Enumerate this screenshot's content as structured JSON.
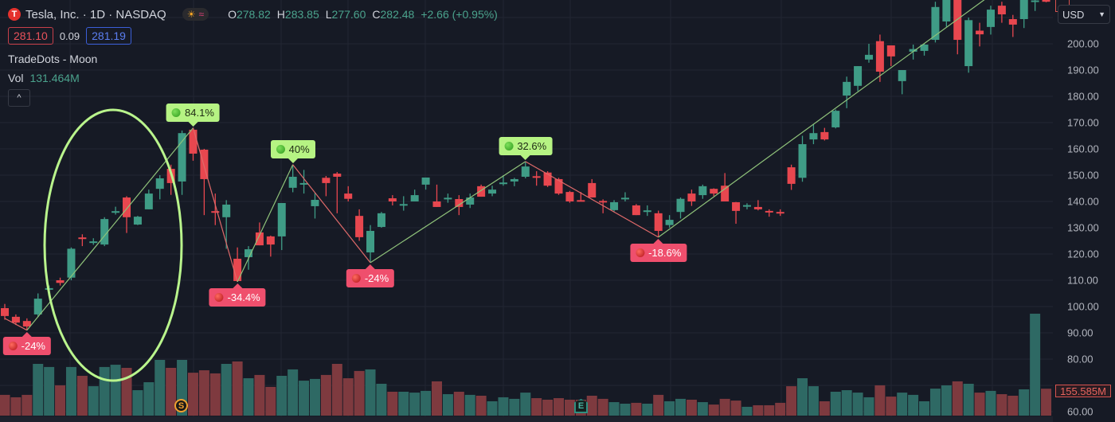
{
  "header": {
    "symbol_title": "Tesla, Inc. · 1D · NASDAQ",
    "logo_letter": "T",
    "ohlc": [
      {
        "key": "O",
        "value": "278.82"
      },
      {
        "key": "H",
        "value": "283.85"
      },
      {
        "key": "L",
        "value": "277.60"
      },
      {
        "key": "C",
        "value": "282.48"
      }
    ],
    "change": "+2.66 (+0.95%)",
    "bid": "281.10",
    "spread": "0.09",
    "ask": "281.19",
    "indicator": "TradeDots - Moon",
    "vol_label": "Vol",
    "vol_value": "131.464M",
    "collapse_icon": "^"
  },
  "currency": {
    "label": "USD",
    "icon": "chevron-down-icon"
  },
  "colors": {
    "up": "#3f9c86",
    "down": "#e8474f",
    "vol_up": "#2e6964",
    "vol_down": "#7e3a3f",
    "signal_up": "#b6f383",
    "signal_down": "#ef4f6d",
    "ellipse": "#b9f48c",
    "background": "#161a25"
  },
  "events": {
    "split": "S",
    "earnings": "E"
  },
  "chart_data": {
    "type": "candlestick",
    "yaxis_ticks": [
      "200.00",
      "190.00",
      "180.00",
      "170.00",
      "160.00",
      "150.00",
      "140.00",
      "130.00",
      "120.00",
      "110.00",
      "100.00",
      "90.00",
      "80.00",
      "60.00"
    ],
    "ylim": [
      60,
      216
    ],
    "grid": true,
    "last_volume_label": "155.585M",
    "candles": [
      [
        99.4,
        101,
        95,
        96.4
      ],
      [
        96.1,
        97,
        93,
        93.9
      ],
      [
        94.5,
        95.5,
        91,
        92.4
      ],
      [
        97,
        105,
        96,
        103
      ],
      [
        106.5,
        108,
        106,
        107
      ],
      [
        110,
        111,
        108,
        109
      ],
      [
        111,
        122.5,
        110,
        122
      ],
      [
        126.3,
        127.5,
        123,
        125.8
      ],
      [
        124.3,
        126,
        123.5,
        124.8
      ],
      [
        123.6,
        134,
        123,
        133.3
      ],
      [
        135.8,
        138,
        135,
        136.3
      ],
      [
        141.5,
        142,
        128,
        134
      ],
      [
        131.2,
        134.5,
        131,
        134.2
      ],
      [
        137,
        144.5,
        137,
        143
      ],
      [
        144.8,
        150,
        140.8,
        148.8
      ],
      [
        152.4,
        154,
        142.5,
        147
      ],
      [
        147.6,
        167,
        142.5,
        166
      ],
      [
        167.3,
        168,
        155.5,
        158.2
      ],
      [
        159.7,
        160,
        134.8,
        148.5
      ],
      [
        136.3,
        143,
        131,
        135.8
      ],
      [
        134,
        140.5,
        122,
        138.8
      ],
      [
        118.2,
        122.5,
        109.4,
        109.7
      ],
      [
        118.8,
        123,
        114,
        121.8
      ],
      [
        128.2,
        132,
        123.3,
        123.3
      ],
      [
        126.7,
        127,
        119,
        123.6
      ],
      [
        126.7,
        139.4,
        121.5,
        139.4
      ],
      [
        145.2,
        154,
        143.5,
        149.4
      ],
      [
        146.4,
        152,
        143,
        147
      ],
      [
        138.2,
        143.3,
        133.5,
        140.6
      ],
      [
        149,
        149.7,
        142,
        147
      ],
      [
        150.6,
        151.2,
        135.5,
        149.4
      ],
      [
        143,
        145.8,
        140,
        141
      ],
      [
        134.5,
        137,
        125,
        126.4
      ],
      [
        120.6,
        131,
        116.7,
        128.8
      ],
      [
        130.3,
        136,
        130,
        135.5
      ],
      [
        141.2,
        142.4,
        138.5,
        140
      ],
      [
        138.5,
        142,
        136.5,
        139
      ],
      [
        140,
        144.5,
        140,
        142.4
      ],
      [
        146.4,
        149.1,
        144.5,
        149.1
      ],
      [
        140,
        146.4,
        137.9,
        137.9
      ],
      [
        141,
        143,
        139.5,
        141.4
      ],
      [
        140.9,
        142.4,
        134.8,
        137.9
      ],
      [
        138.8,
        143,
        137.5,
        141.5
      ],
      [
        145.8,
        146.4,
        141.8,
        141.8
      ],
      [
        143,
        146,
        142,
        144.5
      ],
      [
        146.8,
        150,
        146,
        147.2
      ],
      [
        147.6,
        149,
        145.8,
        148.5
      ],
      [
        149.4,
        155.2,
        148.8,
        153.3
      ],
      [
        149.6,
        151.5,
        146,
        149.2
      ],
      [
        151,
        151.5,
        145.5,
        146
      ],
      [
        148.5,
        149,
        142.5,
        143
      ],
      [
        143.6,
        144,
        139.5,
        140
      ],
      [
        140.5,
        143.6,
        140,
        140.2
      ],
      [
        147,
        148.5,
        141.5,
        141.5
      ],
      [
        140.2,
        140.8,
        135.5,
        140
      ],
      [
        136.7,
        140.5,
        136.2,
        139.7
      ],
      [
        141,
        143.5,
        140,
        141.4
      ],
      [
        138.5,
        139,
        134.8,
        134.8
      ],
      [
        136.2,
        138.5,
        134.5,
        136.6
      ],
      [
        135.5,
        136.5,
        126.4,
        128.8
      ],
      [
        131,
        134.8,
        130,
        133
      ],
      [
        136,
        141.5,
        133.5,
        141
      ],
      [
        143,
        144.5,
        138.3,
        140
      ],
      [
        142.4,
        146.4,
        141,
        145.8
      ],
      [
        144.8,
        145,
        142,
        143
      ],
      [
        146,
        150.8,
        140,
        140
      ],
      [
        139.7,
        139.8,
        131.5,
        136.4
      ],
      [
        138.3,
        139.3,
        137,
        138.6
      ],
      [
        137.9,
        140.5,
        136.6,
        137
      ],
      [
        136.4,
        137,
        134.2,
        135.8
      ],
      [
        136,
        137,
        134.5,
        135.8
      ],
      [
        153,
        154,
        144.4,
        146.7
      ],
      [
        149,
        165,
        147.5,
        161.8
      ],
      [
        163.6,
        169.5,
        161.8,
        166
      ],
      [
        166.4,
        168,
        163.2,
        163.6
      ],
      [
        168.2,
        175,
        167.8,
        174.5
      ],
      [
        180.3,
        187.5,
        175.5,
        185.5
      ],
      [
        184,
        191.5,
        182,
        191.5
      ],
      [
        194,
        200,
        192.8,
        195.8
      ],
      [
        201,
        203.5,
        185.5,
        189.4
      ],
      [
        199.4,
        199.4,
        191.5,
        195.2
      ],
      [
        185.8,
        190,
        180.8,
        190
      ],
      [
        197,
        199.7,
        194,
        198
      ],
      [
        197.3,
        200,
        195.5,
        199.7
      ],
      [
        201.5,
        216,
        200.5,
        214
      ],
      [
        208.5,
        220,
        206.5,
        220
      ],
      [
        222,
        223,
        196,
        201.5
      ],
      [
        191.5,
        210,
        189,
        209
      ],
      [
        205,
        208,
        199,
        203.6
      ],
      [
        206.4,
        214.5,
        203.5,
        213
      ],
      [
        214.5,
        216,
        208,
        211.2
      ],
      [
        209.4,
        211,
        202.6,
        207.3
      ],
      [
        209.4,
        222,
        206,
        217
      ],
      [
        216,
        222,
        212.5,
        216.5
      ],
      [
        217,
        222,
        215.8,
        216
      ]
    ],
    "volumes_m": [
      120,
      106,
      120,
      299,
      281,
      175,
      281,
      230,
      170,
      281,
      294,
      276,
      147,
      193,
      322,
      276,
      322,
      248,
      262,
      244,
      299,
      313,
      216,
      235,
      166,
      230,
      267,
      202,
      212,
      235,
      299,
      216,
      258,
      267,
      184,
      138,
      138,
      133,
      143,
      198,
      124,
      138,
      120,
      115,
      83,
      106,
      97,
      133,
      101,
      92,
      101,
      92,
      92,
      115,
      97,
      78,
      69,
      74,
      69,
      120,
      83,
      97,
      92,
      78,
      64,
      97,
      87,
      51,
      60,
      60,
      74,
      170,
      216,
      170,
      83,
      138,
      147,
      133,
      106,
      175,
      110,
      133,
      120,
      83,
      156,
      175,
      198,
      184,
      133,
      143,
      124,
      115,
      152,
      589,
      155.6
    ],
    "zigzag": [
      {
        "i": 0,
        "p": 95.5
      },
      {
        "i": 2,
        "p": 91,
        "label": "-24%",
        "dir": "down"
      },
      {
        "i": 17,
        "p": 168,
        "label": "84.1%",
        "dir": "up"
      },
      {
        "i": 21,
        "p": 109.4,
        "label": "-34.4%",
        "dir": "down"
      },
      {
        "i": 26,
        "p": 154,
        "label": "40%",
        "dir": "up"
      },
      {
        "i": 33,
        "p": 116.7,
        "label": "-24%",
        "dir": "down"
      },
      {
        "i": 47,
        "p": 155.2,
        "label": "32.6%",
        "dir": "up"
      },
      {
        "i": 59,
        "p": 126.4,
        "label": "-18.6%",
        "dir": "down"
      },
      {
        "i": 88.5,
        "p": 217
      }
    ]
  }
}
